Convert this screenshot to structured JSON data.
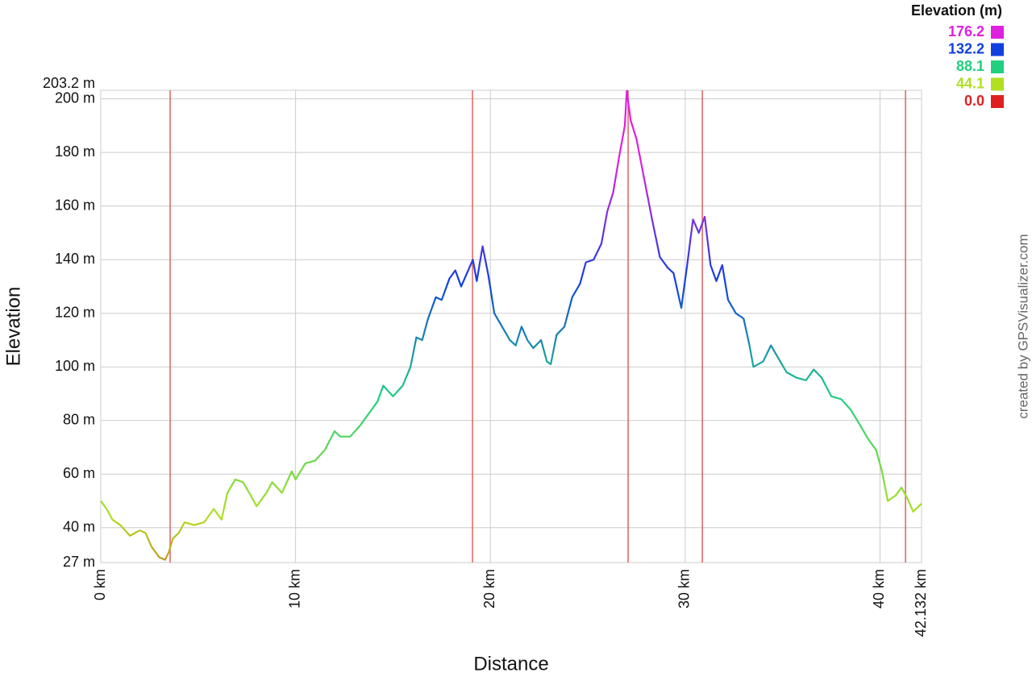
{
  "chart_data": {
    "type": "line",
    "x_label": "Distance",
    "y_label": "Elevation",
    "credit": "created by GPSVisualizer.com",
    "legend_title": "Elevation (m)",
    "legend": [
      {
        "value": 176.2,
        "color": "#e020e0"
      },
      {
        "value": 132.2,
        "color": "#1040e0"
      },
      {
        "value": 88.1,
        "color": "#20d080"
      },
      {
        "value": 44.1,
        "color": "#b0e020"
      },
      {
        "value": 0,
        "label": "0.0",
        "color": "#e02020"
      }
    ],
    "legend_corner": "top-right",
    "grid": true,
    "xlim": [
      0,
      42.132
    ],
    "ylim": [
      27,
      203.2
    ],
    "xticks": [
      {
        "value": 0,
        "label": "0 km"
      },
      {
        "value": 10,
        "label": "10 km"
      },
      {
        "value": 20,
        "label": "20 km"
      },
      {
        "value": 30,
        "label": "30 km"
      },
      {
        "value": 40,
        "label": "40 km"
      },
      {
        "value": 42.132,
        "label": "42.132 km"
      }
    ],
    "yticks": [
      {
        "value": 27,
        "label": "27 m"
      },
      {
        "value": 40,
        "label": "40 m"
      },
      {
        "value": 60,
        "label": "60 m"
      },
      {
        "value": 80,
        "label": "80 m"
      },
      {
        "value": 100,
        "label": "100 m"
      },
      {
        "value": 120,
        "label": "120 m"
      },
      {
        "value": 140,
        "label": "140 m"
      },
      {
        "value": 160,
        "label": "160 m"
      },
      {
        "value": 180,
        "label": "180 m"
      },
      {
        "value": 200,
        "label": "200 m"
      },
      {
        "value": 203.2,
        "label": "203.2 m"
      }
    ],
    "markers": [
      3.56,
      19.08,
      27.07,
      30.88,
      41.31
    ],
    "marker_color": "#e06060",
    "x": [
      0,
      0.3,
      0.6,
      1,
      1.5,
      2,
      2.3,
      2.6,
      3,
      3.3,
      3.5,
      3.7,
      4,
      4.3,
      4.8,
      5.3,
      5.8,
      6.2,
      6.5,
      6.9,
      7.3,
      7.7,
      8,
      8.5,
      8.8,
      9.3,
      9.8,
      10,
      10.5,
      11,
      11.5,
      12,
      12.3,
      12.8,
      13.3,
      13.8,
      14.2,
      14.5,
      15,
      15.5,
      15.9,
      16.2,
      16.5,
      16.8,
      17.2,
      17.5,
      17.9,
      18.2,
      18.5,
      18.8,
      19.1,
      19.3,
      19.6,
      19.9,
      20.2,
      20.6,
      21,
      21.3,
      21.6,
      21.9,
      22.2,
      22.6,
      22.9,
      23.1,
      23.4,
      23.8,
      24.2,
      24.6,
      24.9,
      25.3,
      25.7,
      26,
      26.3,
      26.6,
      26.9,
      27,
      27.2,
      27.5,
      27.9,
      28.3,
      28.7,
      29.1,
      29.4,
      29.8,
      30.1,
      30.4,
      30.7,
      31,
      31.3,
      31.6,
      31.9,
      32.2,
      32.6,
      33,
      33.3,
      33.5,
      34,
      34.4,
      34.8,
      35.2,
      35.7,
      36.2,
      36.6,
      37,
      37.5,
      38,
      38.5,
      39,
      39.4,
      39.8,
      40.1,
      40.4,
      40.8,
      41.1,
      41.4,
      41.7,
      42.132
    ],
    "values": [
      50,
      47,
      43,
      41,
      37,
      39,
      38,
      33,
      29,
      28,
      31,
      36,
      38,
      42,
      41,
      42,
      47,
      43,
      53,
      58,
      57,
      52,
      48,
      53,
      57,
      53,
      61,
      58,
      64,
      65,
      69,
      76,
      74,
      74,
      78,
      83,
      87,
      93,
      89,
      93,
      100,
      111,
      110,
      118,
      126,
      125,
      133,
      136,
      130,
      135,
      140,
      132,
      145,
      134,
      120,
      115,
      110,
      108,
      115,
      110,
      107,
      110,
      102,
      101,
      112,
      115,
      126,
      131,
      139,
      140,
      146,
      158,
      165,
      178,
      190,
      203,
      192,
      185,
      170,
      155,
      141,
      137,
      135,
      122,
      138,
      155,
      150,
      156,
      138,
      132,
      138,
      125,
      120,
      118,
      108,
      100,
      102,
      108,
      103,
      98,
      96,
      95,
      99,
      96,
      89,
      88,
      84,
      78,
      73,
      69,
      61,
      50,
      52,
      55,
      51,
      46,
      49
    ]
  }
}
